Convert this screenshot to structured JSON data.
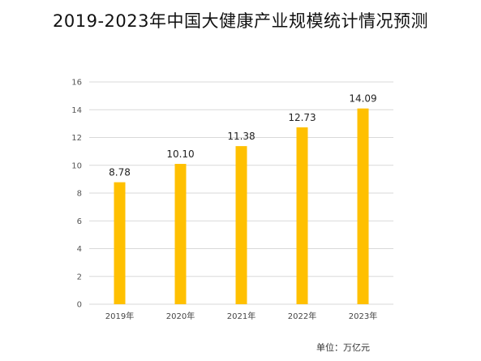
{
  "chart_data": {
    "type": "bar",
    "title": "2019-2023年中国大健康产业规模统计情况预测",
    "unit": "单位：万亿元",
    "categories": [
      "2019年",
      "2020年",
      "2021年",
      "2022年",
      "2023年"
    ],
    "values": [
      8.78,
      10.1,
      11.38,
      12.73,
      14.09
    ],
    "value_labels": [
      "8.78",
      "10.10",
      "11.38",
      "12.73",
      "14.09"
    ],
    "yticks": [
      "0",
      "2",
      "4",
      "6",
      "8",
      "10",
      "12",
      "14",
      "16"
    ],
    "ylim": [
      0,
      16
    ],
    "grid": true,
    "bar_color": "#FFC000",
    "grid_color": "#D9D9D9"
  }
}
